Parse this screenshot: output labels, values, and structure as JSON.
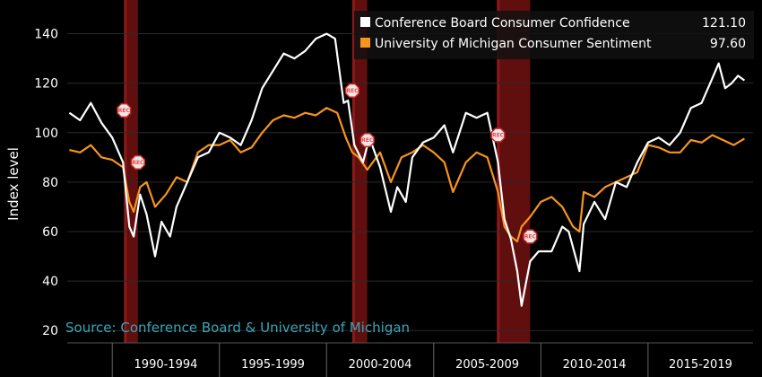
{
  "chart_data": {
    "type": "line",
    "title": "",
    "xlabel": "",
    "ylabel": "Index level",
    "ylim": [
      15,
      150
    ],
    "xlim": [
      1987.9,
      2019.9
    ],
    "yticks": [
      20,
      40,
      60,
      80,
      100,
      120,
      140
    ],
    "grid": true,
    "legend_position": "top-right",
    "source": "Source: Conference Board & University of Michigan",
    "x_period_labels": [
      {
        "label": "1990-1994",
        "start": 1990,
        "end": 1995
      },
      {
        "label": "1995-1999",
        "start": 1995,
        "end": 2000
      },
      {
        "label": "2000-2004",
        "start": 2000,
        "end": 2005
      },
      {
        "label": "2005-2009",
        "start": 2005,
        "end": 2010
      },
      {
        "label": "2010-2014",
        "start": 2010,
        "end": 2015
      },
      {
        "label": "2015-2019",
        "start": 2015,
        "end": 2020
      }
    ],
    "recessions": [
      {
        "start": 1990.55,
        "end": 1991.2
      },
      {
        "start": 2001.2,
        "end": 2001.9
      },
      {
        "start": 2007.95,
        "end": 2009.5
      }
    ],
    "recession_marker_label": "REC",
    "series": [
      {
        "name": "Conference Board Consumer Confidence",
        "color": "#ffffff",
        "last_label": "121.10",
        "x": [
          1988.0,
          1988.5,
          1989.0,
          1989.5,
          1990.0,
          1990.5,
          1990.8,
          1991.0,
          1991.3,
          1991.6,
          1992.0,
          1992.3,
          1992.7,
          1993.0,
          1993.5,
          1994.0,
          1994.5,
          1995.0,
          1995.5,
          1996.0,
          1996.5,
          1997.0,
          1997.5,
          1998.0,
          1998.5,
          1999.0,
          1999.5,
          2000.0,
          2000.4,
          2000.8,
          2001.0,
          2001.3,
          2001.7,
          2002.0,
          2002.5,
          2003.0,
          2003.3,
          2003.7,
          2004.0,
          2004.5,
          2005.0,
          2005.5,
          2005.9,
          2006.5,
          2007.0,
          2007.5,
          2008.0,
          2008.3,
          2008.6,
          2008.9,
          2009.1,
          2009.5,
          2009.9,
          2010.5,
          2011.0,
          2011.3,
          2011.8,
          2012.0,
          2012.5,
          2013.0,
          2013.5,
          2014.0,
          2014.5,
          2015.0,
          2015.5,
          2016.0,
          2016.5,
          2017.0,
          2017.5,
          2018.0,
          2018.3,
          2018.6,
          2018.9,
          2019.2,
          2019.5
        ],
        "y": [
          108,
          105,
          112,
          104,
          98,
          88,
          62,
          58,
          75,
          67,
          50,
          64,
          58,
          70,
          80,
          90,
          92,
          100,
          98,
          95,
          105,
          118,
          125,
          132,
          130,
          133,
          138,
          140,
          138,
          112,
          113,
          95,
          88,
          98,
          86,
          68,
          78,
          72,
          90,
          96,
          98,
          103,
          92,
          108,
          106,
          108,
          88,
          65,
          57,
          44,
          30,
          48,
          52,
          52,
          62,
          60,
          44,
          63,
          72,
          65,
          80,
          78,
          88,
          96,
          98,
          95,
          100,
          110,
          112,
          122,
          128,
          118,
          120,
          123,
          121.1
        ]
      },
      {
        "name": "University of Michigan Consumer Sentiment",
        "color": "#f7941d",
        "last_label": "97.60",
        "x": [
          1988.0,
          1988.5,
          1989.0,
          1989.5,
          1990.0,
          1990.5,
          1990.8,
          1991.0,
          1991.3,
          1991.6,
          1992.0,
          1992.5,
          1993.0,
          1993.5,
          1994.0,
          1994.5,
          1995.0,
          1995.5,
          1996.0,
          1996.5,
          1997.0,
          1997.5,
          1998.0,
          1998.5,
          1999.0,
          1999.5,
          2000.0,
          2000.5,
          2000.9,
          2001.2,
          2001.5,
          2001.9,
          2002.5,
          2003.0,
          2003.5,
          2004.0,
          2004.5,
          2005.0,
          2005.5,
          2005.9,
          2006.5,
          2007.0,
          2007.5,
          2008.0,
          2008.3,
          2008.6,
          2008.9,
          2009.1,
          2009.5,
          2010.0,
          2010.5,
          2011.0,
          2011.5,
          2011.8,
          2012.0,
          2012.5,
          2013.0,
          2013.5,
          2014.0,
          2014.5,
          2015.0,
          2015.5,
          2016.0,
          2016.5,
          2017.0,
          2017.5,
          2018.0,
          2018.5,
          2019.0,
          2019.5
        ],
        "y": [
          93,
          92,
          95,
          90,
          89,
          86,
          72,
          68,
          78,
          80,
          70,
          75,
          82,
          80,
          92,
          95,
          95,
          97,
          92,
          94,
          100,
          105,
          107,
          106,
          108,
          107,
          110,
          108,
          98,
          92,
          90,
          85,
          92,
          80,
          90,
          92,
          95,
          92,
          88,
          76,
          88,
          92,
          90,
          76,
          62,
          58,
          56,
          62,
          66,
          72,
          74,
          70,
          62,
          60,
          76,
          74,
          78,
          80,
          82,
          84,
          95,
          94,
          92,
          92,
          97,
          96,
          99,
          97,
          95,
          97.6
        ]
      }
    ]
  }
}
